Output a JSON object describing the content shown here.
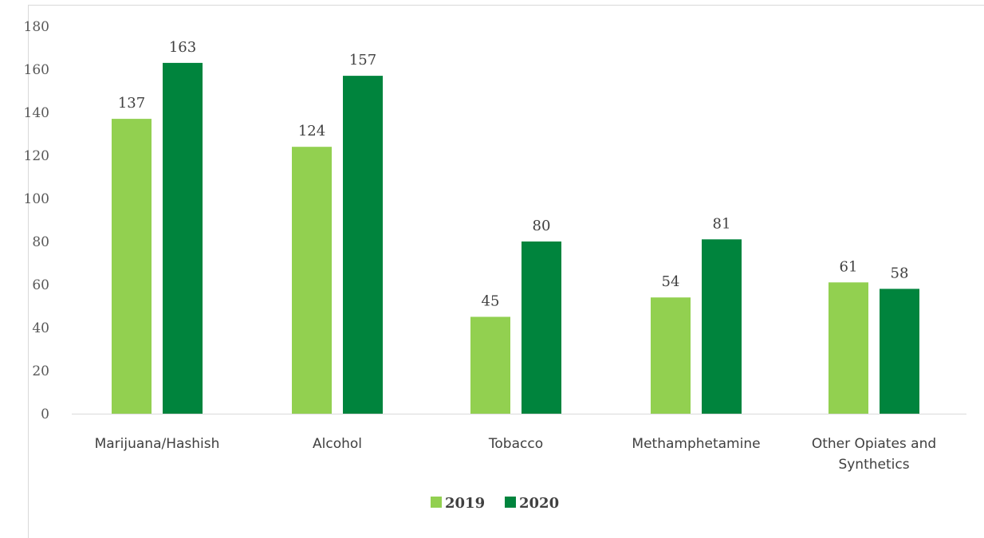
{
  "chart_data": {
    "type": "bar",
    "title": "",
    "categories": [
      "Marijuana/Hashish",
      "Alcohol",
      "Tobacco",
      "Methamphetamine",
      "Other Opiates and Synthetics"
    ],
    "category_lines": [
      [
        "Marijuana/Hashish"
      ],
      [
        "Alcohol"
      ],
      [
        "Tobacco"
      ],
      [
        "Methamphetamine"
      ],
      [
        "Other Opiates and",
        "Synthetics"
      ]
    ],
    "series": [
      {
        "name": "2019",
        "values": [
          137,
          124,
          45,
          54,
          61
        ],
        "color": "#92d050"
      },
      {
        "name": "2020",
        "values": [
          163,
          157,
          80,
          81,
          58
        ],
        "color": "#00843d"
      }
    ],
    "ylim": [
      0,
      180
    ],
    "yticks": [
      0,
      20,
      40,
      60,
      80,
      100,
      120,
      140,
      160,
      180
    ],
    "grid": false,
    "legend_position": "bottom",
    "data_labels": true,
    "xlabel": "",
    "ylabel": ""
  }
}
